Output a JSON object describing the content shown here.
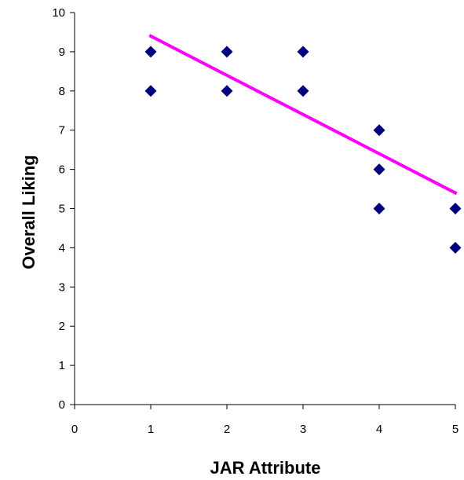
{
  "chart_data": {
    "type": "scatter",
    "title": "",
    "xlabel": "JAR Attribute",
    "ylabel": "Overall Liking",
    "xlim": [
      0,
      5
    ],
    "ylim": [
      0,
      10
    ],
    "xticks": [
      "0",
      "1",
      "2",
      "3",
      "4",
      "5"
    ],
    "yticks": [
      "0",
      "1",
      "2",
      "3",
      "4",
      "5",
      "6",
      "7",
      "8",
      "9",
      "10"
    ],
    "grid": false,
    "legend": "none",
    "point_color": "#00007f",
    "trendline_color": "#ff00ff",
    "points": [
      {
        "x": 1,
        "y": 9
      },
      {
        "x": 1,
        "y": 8
      },
      {
        "x": 2,
        "y": 9
      },
      {
        "x": 2,
        "y": 8
      },
      {
        "x": 3,
        "y": 9
      },
      {
        "x": 3,
        "y": 8
      },
      {
        "x": 4,
        "y": 7
      },
      {
        "x": 4,
        "y": 6
      },
      {
        "x": 4,
        "y": 5
      },
      {
        "x": 5,
        "y": 5
      },
      {
        "x": 5,
        "y": 4
      }
    ],
    "trendline": {
      "x": [
        1,
        5
      ],
      "y": [
        9.4,
        5.4
      ]
    }
  }
}
